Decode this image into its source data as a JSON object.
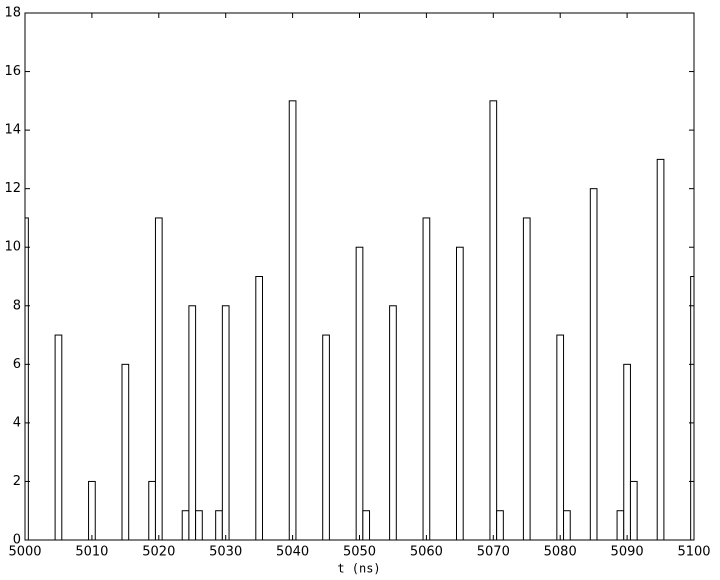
{
  "chart_data": {
    "type": "bar",
    "x_label": "t (ns)",
    "x": [
      5000,
      5005,
      5010,
      5015,
      5019,
      5020,
      5024,
      5025,
      5026,
      5029,
      5030,
      5035,
      5040,
      5045,
      5050,
      5051,
      5055,
      5060,
      5065,
      5070,
      5071,
      5075,
      5080,
      5081,
      5085,
      5089,
      5090,
      5091,
      5095,
      5100
    ],
    "values": [
      11,
      7,
      2,
      6,
      2,
      11,
      1,
      8,
      1,
      1,
      8,
      9,
      15,
      7,
      10,
      1,
      8,
      11,
      10,
      15,
      1,
      11,
      7,
      1,
      12,
      1,
      6,
      2,
      13,
      9
    ],
    "color": "#ffffff",
    "xlim": [
      5000,
      5100
    ],
    "xticks": [
      5000,
      5010,
      5020,
      5030,
      5040,
      5050,
      5060,
      5070,
      5080,
      5090,
      5100
    ],
    "ylim": [
      0,
      18
    ],
    "yticks": [
      0,
      2,
      4,
      6,
      8,
      10,
      12,
      14,
      16,
      18
    ],
    "grid": false
  }
}
